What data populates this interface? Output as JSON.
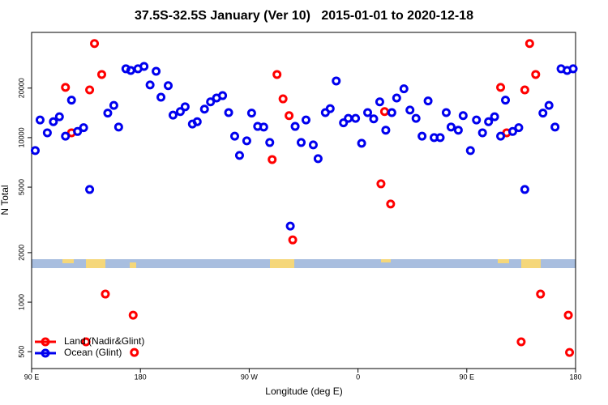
{
  "chart_data": {
    "type": "scatter",
    "title": "37.5S-32.5S January (Ver 10)   2015-01-01 to 2020-12-18",
    "xlabel": "Longitude (deg E)",
    "ylabel": "N Total",
    "xlim": [
      90,
      540
    ],
    "xticks": [
      {
        "value": 90,
        "label": "90 E"
      },
      180,
      {
        "value": 270,
        "label": "90 W"
      },
      {
        "value": 360,
        "label": "0"
      },
      {
        "value": 450,
        "label": "90 E"
      },
      {
        "value": 540,
        "label": "180"
      }
    ],
    "ylim": [
      395,
      43600
    ],
    "ylog": true,
    "yticks": [
      500,
      1000,
      2000,
      5000,
      10000,
      20000
    ],
    "legend": "bottom-left",
    "series": [
      {
        "name": "Land (Nadir&Glint)",
        "color": "#ff0000",
        "x": [
          118,
          123,
          138,
          142,
          148,
          151,
          174,
          175,
          135,
          289,
          293,
          298,
          303,
          306,
          379,
          382,
          387,
          478,
          483,
          498,
          502,
          507,
          511,
          534,
          535,
          495
        ],
        "values": [
          20200,
          10700,
          19500,
          37300,
          24200,
          1120,
          834,
          495,
          574,
          7360,
          24200,
          17200,
          13600,
          2390,
          5240,
          14400,
          3950,
          20200,
          10700,
          19500,
          37300,
          24200,
          1120,
          834,
          495,
          574
        ]
      },
      {
        "name": "Ocean (Glint)",
        "color": "#0000ee",
        "x": [
          93,
          97,
          103,
          108,
          113,
          118,
          123,
          128,
          133,
          138,
          153,
          158,
          162,
          168,
          172,
          178,
          183,
          188,
          193,
          197,
          203,
          207,
          213,
          217,
          223,
          227,
          233,
          238,
          243,
          248,
          253,
          258,
          262,
          268,
          272,
          277,
          282,
          287,
          304,
          308,
          313,
          317,
          323,
          327,
          333,
          337,
          342,
          348,
          352,
          358,
          363,
          368,
          373,
          378,
          383,
          388,
          392,
          398,
          403,
          408,
          413,
          418,
          423,
          428,
          433,
          437,
          443,
          447,
          453,
          458,
          463,
          468,
          473,
          478,
          482,
          488,
          493,
          498,
          513,
          518,
          523,
          528,
          533,
          538
        ],
        "values": [
          8340,
          12800,
          10700,
          12500,
          13400,
          10200,
          16900,
          10900,
          11500,
          4840,
          14100,
          15700,
          11600,
          26200,
          25600,
          26200,
          27100,
          20900,
          25300,
          17600,
          20700,
          13700,
          14400,
          15400,
          12100,
          12500,
          14900,
          16500,
          17400,
          18000,
          14200,
          10200,
          7800,
          9560,
          14100,
          11700,
          11600,
          9340,
          2900,
          11700,
          9340,
          12800,
          9030,
          7450,
          14200,
          15000,
          22100,
          12300,
          13100,
          13100,
          9240,
          14200,
          13000,
          16500,
          11100,
          14200,
          17400,
          19800,
          14700,
          13100,
          10200,
          16700,
          10000,
          10000,
          14200,
          11600,
          11100,
          13600,
          8340,
          12800,
          10700,
          12500,
          13400,
          10200,
          16900,
          10900,
          11500,
          4840,
          14100,
          15700,
          11600,
          26200,
          25600,
          26200
        ]
      }
    ]
  }
}
